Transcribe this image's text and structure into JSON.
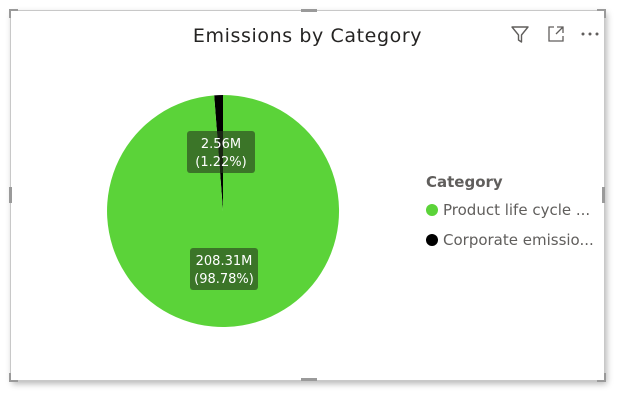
{
  "visual": {
    "title": "Emissions by Category",
    "header_icons": [
      "filter-icon",
      "focus-mode-icon",
      "more-options-icon"
    ]
  },
  "chart_data": {
    "type": "pie",
    "title": "Emissions by Category",
    "legend_title": "Category",
    "legend_position": "right",
    "slices": [
      {
        "name": "Product life cycle ...",
        "value": 208.31,
        "value_label": "208.31M",
        "percent_label": "(98.78%)",
        "color": "#5bd339"
      },
      {
        "name": "Corporate emissio...",
        "value": 2.56,
        "value_label": "2.56M",
        "percent_label": "(1.22%)",
        "color": "#000000"
      }
    ]
  }
}
